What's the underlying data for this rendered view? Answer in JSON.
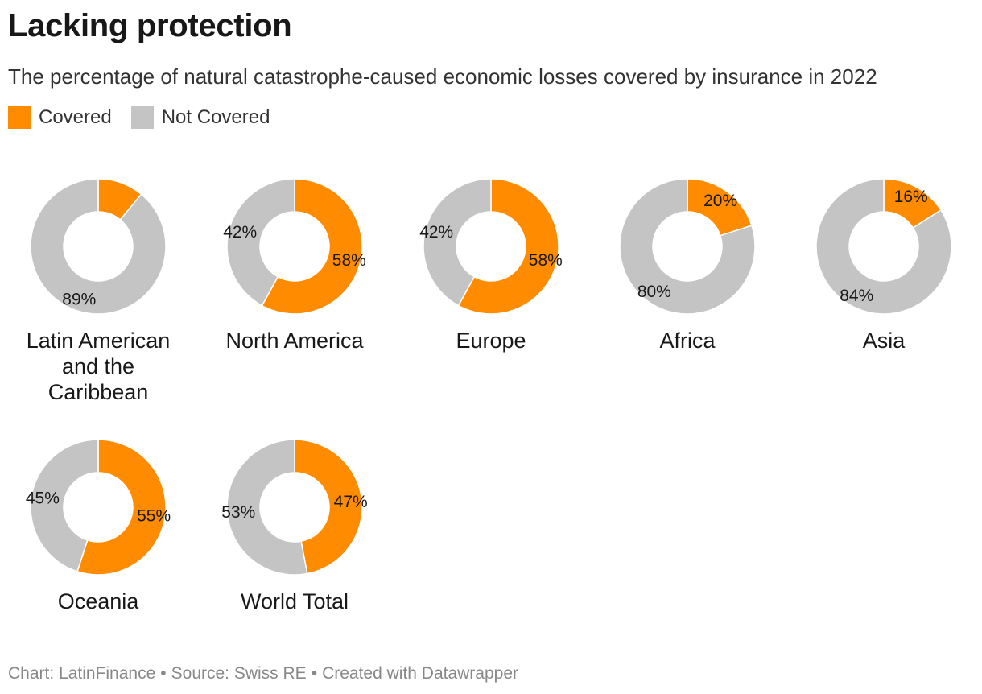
{
  "chart_data": {
    "type": "pie",
    "variant": "donut-small-multiples",
    "title": "Lacking protection",
    "subtitle": "The percentage of natural catastrophe-caused economic losses covered by insurance in 2022",
    "legend": [
      {
        "label": "Covered",
        "color": "#FF8C00"
      },
      {
        "label": "Not Covered",
        "color": "#C4C4C4"
      }
    ],
    "regions": [
      {
        "name": "Latin American and the Caribbean",
        "covered": 11,
        "not_covered": 89,
        "covered_label": "",
        "not_covered_label": "89%"
      },
      {
        "name": "North America",
        "covered": 58,
        "not_covered": 42,
        "covered_label": "58%",
        "not_covered_label": "42%"
      },
      {
        "name": "Europe",
        "covered": 58,
        "not_covered": 42,
        "covered_label": "58%",
        "not_covered_label": "42%"
      },
      {
        "name": "Africa",
        "covered": 20,
        "not_covered": 80,
        "covered_label": "20%",
        "not_covered_label": "80%"
      },
      {
        "name": "Asia",
        "covered": 16,
        "not_covered": 84,
        "covered_label": "16%",
        "not_covered_label": "84%"
      },
      {
        "name": "Oceania",
        "covered": 55,
        "not_covered": 45,
        "covered_label": "55%",
        "not_covered_label": "45%"
      },
      {
        "name": "World Total",
        "covered": 47,
        "not_covered": 53,
        "covered_label": "47%",
        "not_covered_label": "53%"
      }
    ]
  },
  "footer": {
    "chart": "Chart: LatinFinance",
    "source": "Source: Swiss RE",
    "created": "Created with Datawrapper"
  }
}
